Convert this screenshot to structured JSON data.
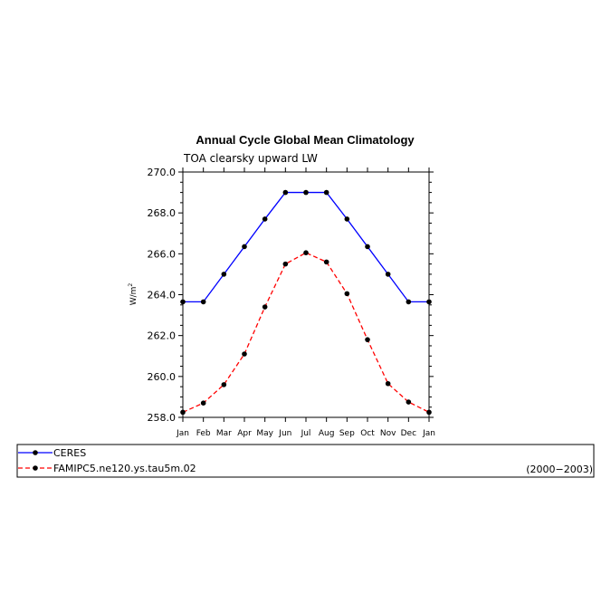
{
  "chart_data": {
    "type": "line",
    "title": "Annual Cycle Global Mean Climatology",
    "subtitle": "TOA clearsky upward LW",
    "ylabel": "W/m",
    "ylabel_sup": "2",
    "categories": [
      "Jan",
      "Feb",
      "Mar",
      "Apr",
      "May",
      "Jun",
      "Jul",
      "Aug",
      "Sep",
      "Oct",
      "Nov",
      "Dec",
      "Jan"
    ],
    "ylim": [
      258.0,
      270.0
    ],
    "yticks": [
      258.0,
      260.0,
      262.0,
      264.0,
      266.0,
      268.0,
      270.0
    ],
    "ytick_labels": [
      "258.0",
      "260.0",
      "262.0",
      "264.0",
      "266.0",
      "268.0",
      "270.0"
    ],
    "series": [
      {
        "name": "CERES",
        "color": "#0000ff",
        "style": "solid",
        "values": [
          263.65,
          263.65,
          265.0,
          266.35,
          267.7,
          269.0,
          269.0,
          269.0,
          267.7,
          266.35,
          265.0,
          263.65,
          263.65
        ]
      },
      {
        "name": "FAMIPC5.ne120.ys.tau5m.02",
        "color": "#ff0000",
        "style": "dashed",
        "values": [
          258.25,
          258.7,
          259.6,
          261.1,
          263.4,
          265.5,
          266.05,
          265.6,
          264.05,
          261.8,
          259.65,
          258.75,
          258.25
        ]
      }
    ],
    "legend_note": "(2000−2003)",
    "legend_position": "bottom",
    "grid": false
  }
}
